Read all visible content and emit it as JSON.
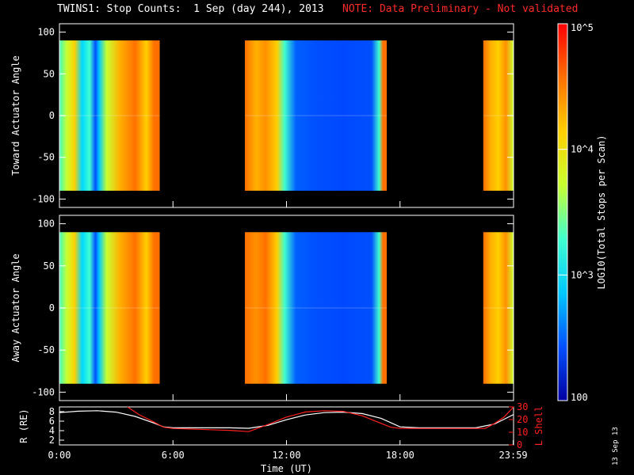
{
  "header": {
    "title": "TWINS1: Stop Counts:  1 Sep (day 244), 2013",
    "note": "NOTE: Data Preliminary - Not validated"
  },
  "date_stamp": "13 Sep 13",
  "colorbar": {
    "label": "LOG10(Total Stops per Scan)",
    "tick_labels": [
      "10^5",
      "10^4",
      "10^3",
      "100"
    ],
    "tick_values": [
      100000,
      10000,
      1000,
      100
    ],
    "colors": [
      "#0000a0",
      "#0050ff",
      "#00c8ff",
      "#40ffd0",
      "#c8ff30",
      "#ffd000",
      "#ff7000",
      "#ff0000"
    ]
  },
  "chart_data": [
    {
      "type": "heatmap",
      "name": "toward",
      "ylabel": "Toward Actuator Angle",
      "ylim": [
        -110,
        110
      ],
      "xlim": [
        0,
        24
      ],
      "yticks": [
        100,
        50,
        0,
        -50,
        -100
      ],
      "data_y_range": [
        -90,
        90
      ],
      "segments": [
        {
          "start": 0.0,
          "end": 5.3,
          "profile": [
            [
              0.0,
              "#40ffc0"
            ],
            [
              0.4,
              "#c8ff30"
            ],
            [
              0.8,
              "#ffd000"
            ],
            [
              1.2,
              "#00d8ff"
            ],
            [
              1.6,
              "#40ffd0"
            ],
            [
              1.9,
              "#0050ff"
            ],
            [
              2.1,
              "#00c8ff"
            ],
            [
              2.5,
              "#c8ff30"
            ],
            [
              3.2,
              "#ffb000"
            ],
            [
              4.0,
              "#ff7000"
            ],
            [
              4.6,
              "#ffd000"
            ],
            [
              5.0,
              "#ff7000"
            ]
          ]
        },
        {
          "start": 9.8,
          "end": 17.3,
          "profile": [
            [
              9.8,
              "#ff7000"
            ],
            [
              10.4,
              "#ffb000"
            ],
            [
              10.9,
              "#ff9000"
            ],
            [
              11.5,
              "#ffd000"
            ],
            [
              11.9,
              "#40ffd0"
            ],
            [
              12.5,
              "#0060ff"
            ],
            [
              13.5,
              "#0050ff"
            ],
            [
              15.0,
              "#0048ff"
            ],
            [
              16.5,
              "#0050ff"
            ],
            [
              16.9,
              "#40ffd0"
            ],
            [
              17.1,
              "#ff7000"
            ]
          ]
        },
        {
          "start": 22.4,
          "end": 24.0,
          "profile": [
            [
              22.4,
              "#ff7000"
            ],
            [
              22.8,
              "#ffb000"
            ],
            [
              23.2,
              "#ffd000"
            ],
            [
              23.6,
              "#ff9000"
            ],
            [
              24.0,
              "#c8ff30"
            ]
          ]
        }
      ]
    },
    {
      "type": "heatmap",
      "name": "away",
      "ylabel": "Away Actuator Angle",
      "ylim": [
        -110,
        110
      ],
      "xlim": [
        0,
        24
      ],
      "yticks": [
        100,
        50,
        0,
        -50,
        -100
      ],
      "data_y_range": [
        -90,
        90
      ],
      "segments": [
        {
          "start": 0.0,
          "end": 5.3,
          "profile": [
            [
              0.0,
              "#40ffc0"
            ],
            [
              0.4,
              "#c8ff30"
            ],
            [
              0.8,
              "#ffd000"
            ],
            [
              1.2,
              "#00d8ff"
            ],
            [
              1.6,
              "#40ffd0"
            ],
            [
              1.9,
              "#0050ff"
            ],
            [
              2.1,
              "#00c8ff"
            ],
            [
              2.5,
              "#c8ff30"
            ],
            [
              3.2,
              "#ffb000"
            ],
            [
              4.0,
              "#ff7000"
            ],
            [
              4.6,
              "#ffd000"
            ],
            [
              5.0,
              "#ff7000"
            ]
          ]
        },
        {
          "start": 9.8,
          "end": 17.3,
          "profile": [
            [
              9.8,
              "#ff7000"
            ],
            [
              10.4,
              "#ff9000"
            ],
            [
              10.9,
              "#ff7000"
            ],
            [
              11.5,
              "#ffd000"
            ],
            [
              11.9,
              "#40ffd0"
            ],
            [
              12.5,
              "#0060ff"
            ],
            [
              13.5,
              "#0050ff"
            ],
            [
              15.0,
              "#0048ff"
            ],
            [
              16.5,
              "#0050ff"
            ],
            [
              16.9,
              "#40ffd0"
            ],
            [
              17.1,
              "#ff7000"
            ]
          ]
        },
        {
          "start": 22.4,
          "end": 24.0,
          "profile": [
            [
              22.4,
              "#ff7000"
            ],
            [
              22.8,
              "#ffb000"
            ],
            [
              23.2,
              "#ffd000"
            ],
            [
              23.6,
              "#ff9000"
            ],
            [
              24.0,
              "#c8ff30"
            ]
          ]
        }
      ]
    },
    {
      "type": "line",
      "name": "orbit",
      "ylabel": "R (RE)",
      "ylabel2": "L Shell",
      "xlabel": "Time (UT)",
      "ylim": [
        1,
        9
      ],
      "ylim2": [
        0,
        30
      ],
      "yticks": [
        8,
        6,
        4,
        2
      ],
      "yticks2": [
        30,
        20,
        10,
        0
      ],
      "xticks": [
        0,
        6,
        12,
        18,
        23.983
      ],
      "xtick_labels": [
        "0:00",
        "6:00",
        "12:00",
        "18:00",
        "23:59"
      ],
      "series": [
        {
          "name": "R",
          "color": "#ffffff",
          "x": [
            0,
            1,
            2,
            3,
            4,
            5,
            5.5,
            6,
            7,
            8,
            9,
            10,
            11,
            12,
            13,
            14,
            15,
            16,
            17,
            18,
            19,
            20,
            21,
            22,
            23,
            24
          ],
          "y": [
            7.8,
            8.1,
            8.2,
            7.9,
            7.0,
            5.6,
            4.8,
            4.6,
            4.6,
            4.6,
            4.6,
            4.5,
            5.1,
            6.3,
            7.3,
            7.8,
            7.9,
            7.6,
            6.6,
            4.8,
            4.6,
            4.6,
            4.6,
            4.6,
            5.4,
            7.4
          ]
        },
        {
          "name": "L",
          "color": "#ff2020",
          "x": [
            3.6,
            4.2,
            5.0,
            5.5,
            6,
            7,
            8,
            9,
            10,
            11,
            12,
            13,
            14,
            15,
            16,
            17,
            17.5,
            18,
            19,
            20,
            21,
            22,
            22.5,
            23,
            23.5,
            24
          ],
          "y": [
            30,
            24,
            18,
            14,
            13,
            12.5,
            12,
            11.5,
            10.5,
            16,
            22,
            26,
            27,
            26.5,
            23,
            17,
            14,
            13,
            13,
            13,
            13,
            13,
            13,
            17,
            22,
            30
          ]
        }
      ]
    }
  ]
}
